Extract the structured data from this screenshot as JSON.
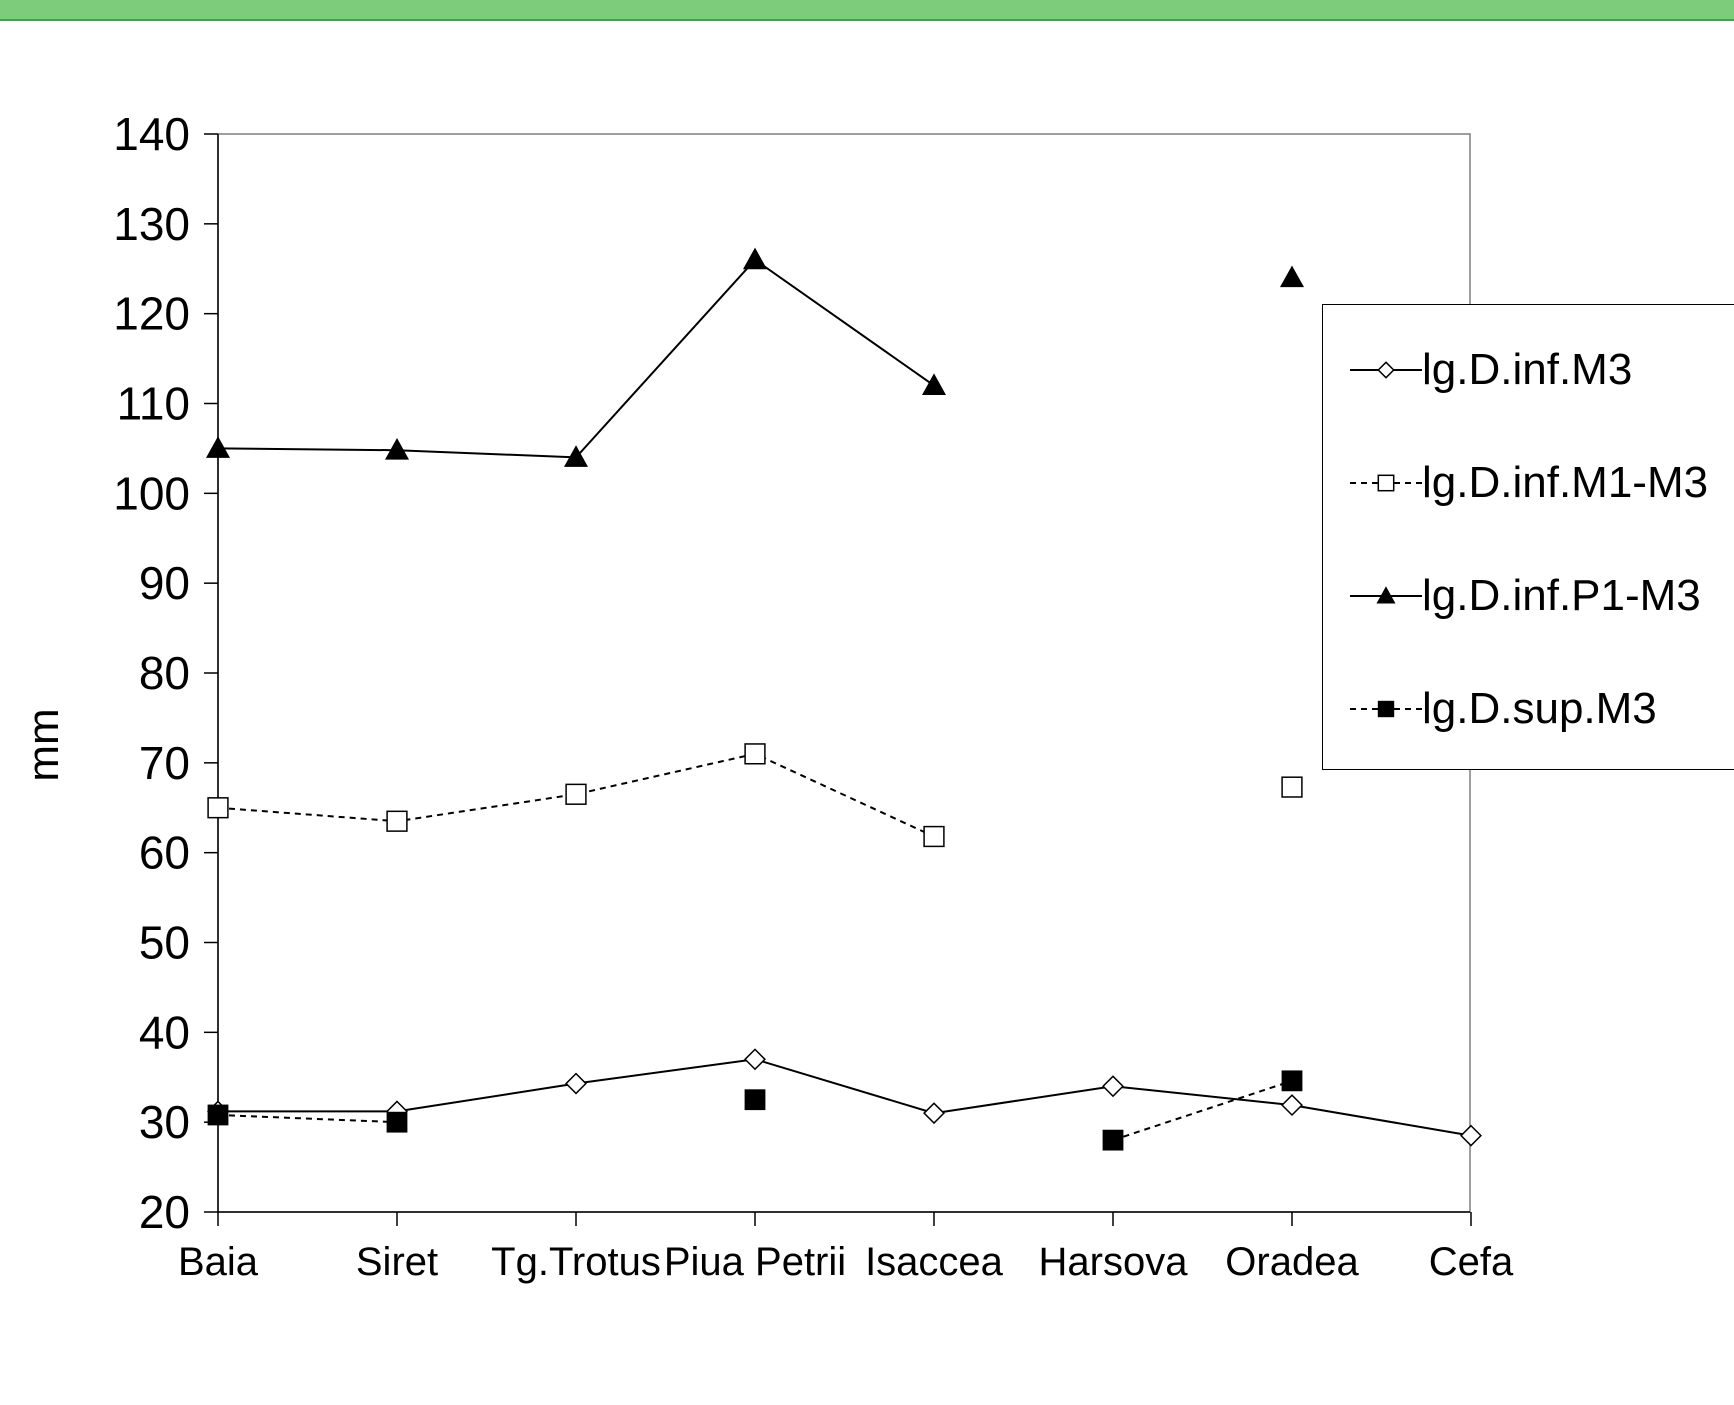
{
  "colors": {
    "top_bar": "#7ccc7c",
    "line": "#000000",
    "background": "#ffffff"
  },
  "chart_data": {
    "type": "line",
    "title": "",
    "xlabel": "",
    "ylabel": "mm",
    "categories": [
      "Baia",
      "Siret",
      "Tg.Trotus",
      "Piua Petrii",
      "Isaccea",
      "Harsova",
      "Oradea",
      "Cefa"
    ],
    "ylim": [
      20,
      140
    ],
    "yticks": [
      20,
      30,
      40,
      50,
      60,
      70,
      80,
      90,
      100,
      110,
      120,
      130,
      140
    ],
    "grid": false,
    "legend_position": "right",
    "series": [
      {
        "name": "lg.D.inf.M3",
        "marker": "diamond-open",
        "line": "solid",
        "values": [
          31.2,
          31.2,
          34.3,
          37.0,
          31.0,
          34.0,
          31.9,
          28.5
        ]
      },
      {
        "name": "lg.D.inf.M1-M3",
        "marker": "square-open",
        "line": "dashed",
        "values": [
          65.0,
          63.5,
          66.5,
          71.0,
          61.8,
          null,
          67.3,
          null
        ]
      },
      {
        "name": "lg.D.inf.P1-M3",
        "marker": "triangle-filled",
        "line": "solid",
        "values": [
          105.0,
          104.8,
          104.0,
          126.0,
          112.0,
          null,
          124.0,
          null
        ]
      },
      {
        "name": "lg.D.sup.M3",
        "marker": "square-filled",
        "line": "dashed",
        "values": [
          30.8,
          30.0,
          null,
          32.5,
          null,
          28.0,
          34.6,
          null
        ]
      }
    ]
  }
}
